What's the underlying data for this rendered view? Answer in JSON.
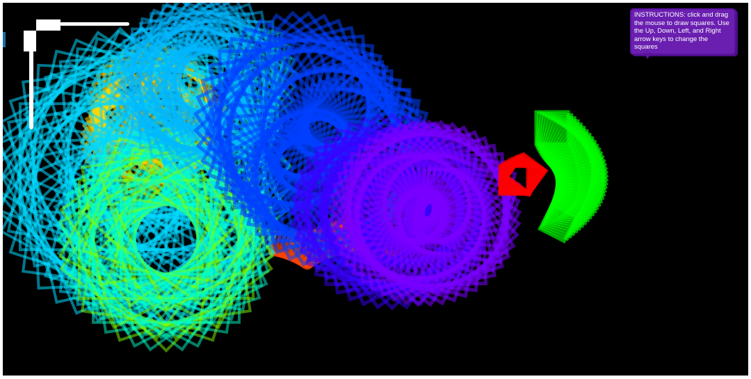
{
  "canvas": {
    "background": "#000000",
    "page_background": "#ffffff"
  },
  "instructions": {
    "text": "INSTRUCTIONS: click and drag the mouse to draw squares. Use the Up, Down, Left, and Right arrow keys to change the squares",
    "background": "#6a1fb0",
    "color": "#ffffff"
  },
  "cursor_icon": "corner-bracket-icon",
  "square_colors": [
    "#00d8ff",
    "#00b8ff",
    "#1e90ff",
    "#0040ff",
    "#3a00ff",
    "#7a00ff",
    "#9b00ff",
    "#00ffcc",
    "#7fff00",
    "#00ff00",
    "#ffd700",
    "#ff4500",
    "#ff0000"
  ]
}
